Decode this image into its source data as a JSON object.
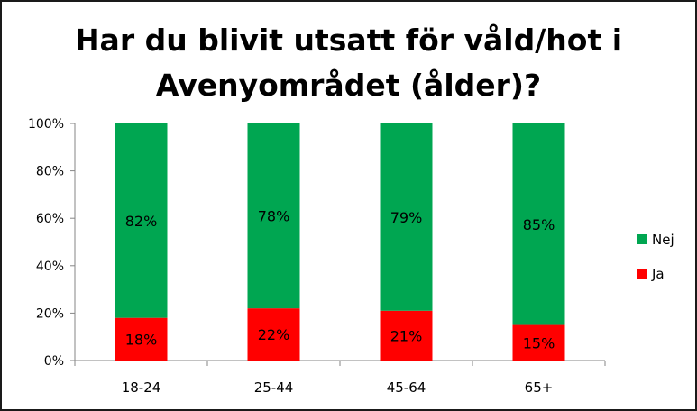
{
  "chart_data": {
    "type": "bar",
    "stacked": true,
    "normalized": true,
    "title_lines": [
      "Har du blivit utsatt för våld/hot i",
      "Avenyområdet (ålder)?"
    ],
    "categories": [
      "18-24",
      "25-44",
      "45-64",
      "65+"
    ],
    "series": [
      {
        "name": "Ja",
        "color": "#ff0000",
        "values": [
          18,
          22,
          21,
          15
        ],
        "labels": [
          "18%",
          "22%",
          "21%",
          "15%"
        ]
      },
      {
        "name": "Nej",
        "color": "#00a651",
        "values": [
          82,
          78,
          79,
          85
        ],
        "labels": [
          "82%",
          "78%",
          "79%",
          "85%"
        ]
      }
    ],
    "y_ticks": [
      "0%",
      "20%",
      "40%",
      "60%",
      "80%",
      "100%"
    ],
    "ylim": [
      0,
      100
    ],
    "grid": false,
    "legend_position": "right",
    "legend_order": [
      "Nej",
      "Ja"
    ]
  }
}
